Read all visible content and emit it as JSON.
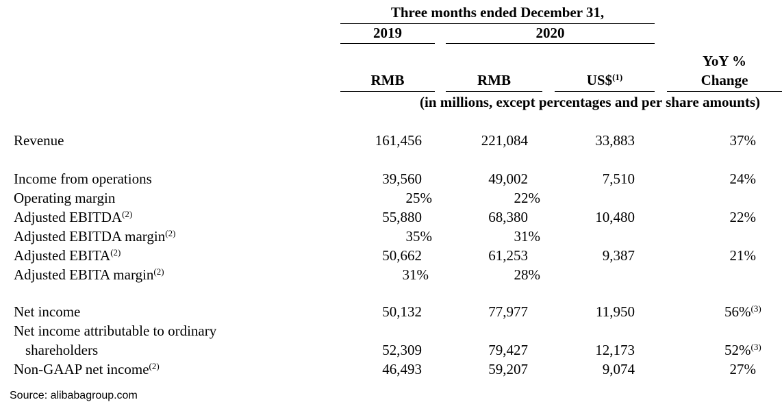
{
  "header": {
    "period": "Three months ended December 31,",
    "year_2019": "2019",
    "year_2020": "2020",
    "col_rmb_2019": "RMB",
    "col_rmb_2020": "RMB",
    "col_usd": "US$",
    "col_usd_note": "(1)",
    "col_yoy_line1": "YoY %",
    "col_yoy_line2": "Change",
    "units": "(in millions, except percentages and per share amounts)"
  },
  "rows": [
    {
      "label": "Revenue",
      "note": "",
      "v2019": "161,456",
      "v2020": "221,084",
      "usd": "33,883",
      "yoy": "37%",
      "yoy_note": ""
    },
    {
      "label": "Income from operations",
      "note": "",
      "v2019": "39,560",
      "v2020": "49,002",
      "usd": "7,510",
      "yoy": "24%",
      "yoy_note": ""
    },
    {
      "label": "Operating margin",
      "note": "",
      "v2019": "25%",
      "v2020": "22%",
      "usd": "",
      "yoy": "",
      "yoy_note": ""
    },
    {
      "label": "Adjusted EBITDA",
      "note": "(2)",
      "v2019": "55,880",
      "v2020": "68,380",
      "usd": "10,480",
      "yoy": "22%",
      "yoy_note": ""
    },
    {
      "label": "Adjusted EBITDA margin",
      "note": "(2)",
      "v2019": "35%",
      "v2020": "31%",
      "usd": "",
      "yoy": "",
      "yoy_note": ""
    },
    {
      "label": "Adjusted EBITA",
      "note": "(2)",
      "v2019": "50,662",
      "v2020": "61,253",
      "usd": "9,387",
      "yoy": "21%",
      "yoy_note": ""
    },
    {
      "label": "Adjusted EBITA margin",
      "note": "(2)",
      "v2019": "31%",
      "v2020": "28%",
      "usd": "",
      "yoy": "",
      "yoy_note": ""
    },
    {
      "label": "Net income",
      "note": "",
      "v2019": "50,132",
      "v2020": "77,977",
      "usd": "11,950",
      "yoy": "56%",
      "yoy_note": "(3)"
    },
    {
      "label": "Net income attributable to ordinary",
      "label2": "shareholders",
      "note": "",
      "v2019": "52,309",
      "v2020": "79,427",
      "usd": "12,173",
      "yoy": "52%",
      "yoy_note": "(3)"
    },
    {
      "label": "Non-GAAP net income",
      "note": "(2)",
      "v2019": "46,493",
      "v2020": "59,207",
      "usd": "9,074",
      "yoy": "27%",
      "yoy_note": ""
    }
  ],
  "source": "Source: alibabagroup.com"
}
